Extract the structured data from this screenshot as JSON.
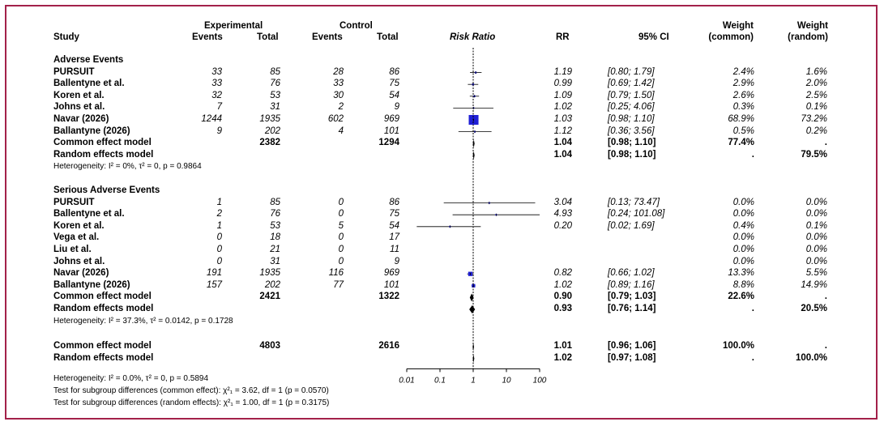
{
  "headers": {
    "experimental": "Experimental",
    "control": "Control",
    "study": "Study",
    "events": "Events",
    "total": "Total",
    "events2": "Events",
    "total2": "Total",
    "risk_ratio": "Risk Ratio",
    "rr": "RR",
    "ci": "95% CI",
    "weight1_top": "Weight",
    "weight1_bottom": "(common)",
    "weight2_top": "Weight",
    "weight2_bottom": "(random)"
  },
  "groups": [
    {
      "title": "Adverse Events",
      "rows": [
        {
          "study": "PURSUIT",
          "e_ev": "33",
          "e_tot": "85",
          "c_ev": "28",
          "c_tot": "86",
          "rr": "1.19",
          "ci": "[0.80;  1.79]",
          "wc": "2.4%",
          "wr": "1.6%"
        },
        {
          "study": "Ballentyne et al.",
          "e_ev": "33",
          "e_tot": "76",
          "c_ev": "33",
          "c_tot": "75",
          "rr": "0.99",
          "ci": "[0.69;  1.42]",
          "wc": "2.9%",
          "wr": "2.0%"
        },
        {
          "study": "Koren et al.",
          "e_ev": "32",
          "e_tot": "53",
          "c_ev": "30",
          "c_tot": "54",
          "rr": "1.09",
          "ci": "[0.79;  1.50]",
          "wc": "2.6%",
          "wr": "2.5%"
        },
        {
          "study": "Johns et al.",
          "e_ev": "7",
          "e_tot": "31",
          "c_ev": "2",
          "c_tot": "9",
          "rr": "1.02",
          "ci": "[0.25;  4.06]",
          "wc": "0.3%",
          "wr": "0.1%"
        },
        {
          "study": "Navar (2026)",
          "e_ev": "1244",
          "e_tot": "1935",
          "c_ev": "602",
          "c_tot": "969",
          "rr": "1.03",
          "ci": "[0.98;  1.10]",
          "wc": "68.9%",
          "wr": "73.2%"
        },
        {
          "study": "Ballantyne (2026)",
          "e_ev": "9",
          "e_tot": "202",
          "c_ev": "4",
          "c_tot": "101",
          "rr": "1.12",
          "ci": "[0.36;  3.56]",
          "wc": "0.5%",
          "wr": "0.2%"
        }
      ],
      "common": {
        "label": "Common effect model",
        "e_tot": "2382",
        "c_tot": "1294",
        "rr": "1.04",
        "ci": "[0.98;  1.10]",
        "wc": "77.4%",
        "wr": "."
      },
      "random": {
        "label": "Random effects model",
        "rr": "1.04",
        "ci": "[0.98;  1.10]",
        "wc": ".",
        "wr": "79.5%"
      },
      "heterogeneity": "Heterogeneity: I² = 0%, τ² = 0, p = 0.9864"
    },
    {
      "title": "Serious Adverse Events",
      "rows": [
        {
          "study": "PURSUIT",
          "e_ev": "1",
          "e_tot": "85",
          "c_ev": "0",
          "c_tot": "86",
          "rr": "3.04",
          "ci": "[0.13; 73.47]",
          "wc": "0.0%",
          "wr": "0.0%"
        },
        {
          "study": "Ballentyne et al.",
          "e_ev": "2",
          "e_tot": "76",
          "c_ev": "0",
          "c_tot": "75",
          "rr": "4.93",
          "ci": "[0.24; 101.08]",
          "wc": "0.0%",
          "wr": "0.0%"
        },
        {
          "study": "Koren et al.",
          "e_ev": "1",
          "e_tot": "53",
          "c_ev": "5",
          "c_tot": "54",
          "rr": "0.20",
          "ci": "[0.02;  1.69]",
          "wc": "0.4%",
          "wr": "0.1%"
        },
        {
          "study": "Vega et al.",
          "e_ev": "0",
          "e_tot": "18",
          "c_ev": "0",
          "c_tot": "17",
          "rr": "",
          "ci": "",
          "wc": "0.0%",
          "wr": "0.0%"
        },
        {
          "study": "Liu et al.",
          "e_ev": "0",
          "e_tot": "21",
          "c_ev": "0",
          "c_tot": "11",
          "rr": "",
          "ci": "",
          "wc": "0.0%",
          "wr": "0.0%"
        },
        {
          "study": "Johns et al.",
          "e_ev": "0",
          "e_tot": "31",
          "c_ev": "0",
          "c_tot": "9",
          "rr": "",
          "ci": "",
          "wc": "0.0%",
          "wr": "0.0%"
        },
        {
          "study": "Navar (2026)",
          "e_ev": "191",
          "e_tot": "1935",
          "c_ev": "116",
          "c_tot": "969",
          "rr": "0.82",
          "ci": "[0.66;  1.02]",
          "wc": "13.3%",
          "wr": "5.5%"
        },
        {
          "study": "Ballantyne (2026)",
          "e_ev": "157",
          "e_tot": "202",
          "c_ev": "77",
          "c_tot": "101",
          "rr": "1.02",
          "ci": "[0.89;  1.16]",
          "wc": "8.8%",
          "wr": "14.9%"
        }
      ],
      "common": {
        "label": "Common effect model",
        "e_tot": "2421",
        "c_tot": "1322",
        "rr": "0.90",
        "ci": "[0.79;  1.03]",
        "wc": "22.6%",
        "wr": "."
      },
      "random": {
        "label": "Random effects model",
        "rr": "0.93",
        "ci": "[0.76;  1.14]",
        "wc": ".",
        "wr": "20.5%"
      },
      "heterogeneity": "Heterogeneity: I² = 37.3%, τ² = 0.0142, p = 0.1728"
    }
  ],
  "overall": {
    "common": {
      "label": "Common effect model",
      "e_tot": "4803",
      "c_tot": "2616",
      "rr": "1.01",
      "ci": "[0.96;  1.06]",
      "wc": "100.0%",
      "wr": "."
    },
    "random": {
      "label": "Random effects model",
      "rr": "1.02",
      "ci": "[0.97;  1.08]",
      "wc": ".",
      "wr": "100.0%"
    }
  },
  "footer": [
    "Heterogeneity: I² = 0.0%, τ² = 0, p = 0.5894",
    "Test for subgroup differences (common effect): χ²₁ = 3.62, df = 1 (p = 0.0570)",
    "Test for subgroup differences (random effects): χ²₁ = 1.00, df = 1 (p = 0.3175)"
  ],
  "colors": {
    "frame": "#a3214a",
    "square": "#1f1fd6",
    "diamond": "#000000"
  },
  "chart_data": {
    "type": "forest",
    "x_scale": "log",
    "xlim": [
      0.01,
      100
    ],
    "x_ticks": [
      0.01,
      0.1,
      1,
      10,
      100
    ],
    "x_tick_labels": [
      "0.01",
      "0.1",
      "1",
      "10",
      "100"
    ],
    "reference_line": 1,
    "studies": [
      {
        "group": "Adverse Events",
        "study": "PURSUIT",
        "rr": 1.19,
        "lo": 0.8,
        "hi": 1.79,
        "weight": 2.4
      },
      {
        "group": "Adverse Events",
        "study": "Ballentyne et al.",
        "rr": 0.99,
        "lo": 0.69,
        "hi": 1.42,
        "weight": 2.9
      },
      {
        "group": "Adverse Events",
        "study": "Koren et al.",
        "rr": 1.09,
        "lo": 0.79,
        "hi": 1.5,
        "weight": 2.6
      },
      {
        "group": "Adverse Events",
        "study": "Johns et al.",
        "rr": 1.02,
        "lo": 0.25,
        "hi": 4.06,
        "weight": 0.3
      },
      {
        "group": "Adverse Events",
        "study": "Navar (2026)",
        "rr": 1.03,
        "lo": 0.98,
        "hi": 1.1,
        "weight": 68.9
      },
      {
        "group": "Adverse Events",
        "study": "Ballantyne (2026)",
        "rr": 1.12,
        "lo": 0.36,
        "hi": 3.56,
        "weight": 0.5
      },
      {
        "group": "Adverse Events",
        "study": "Common effect model",
        "rr": 1.04,
        "lo": 0.98,
        "hi": 1.1,
        "summary": true
      },
      {
        "group": "Adverse Events",
        "study": "Random effects model",
        "rr": 1.04,
        "lo": 0.98,
        "hi": 1.1,
        "summary": true
      },
      {
        "group": "Serious Adverse Events",
        "study": "PURSUIT",
        "rr": 3.04,
        "lo": 0.13,
        "hi": 73.47,
        "weight": 0.0
      },
      {
        "group": "Serious Adverse Events",
        "study": "Ballentyne et al.",
        "rr": 4.93,
        "lo": 0.24,
        "hi": 101.08,
        "weight": 0.0
      },
      {
        "group": "Serious Adverse Events",
        "study": "Koren et al.",
        "rr": 0.2,
        "lo": 0.02,
        "hi": 1.69,
        "weight": 0.4
      },
      {
        "group": "Serious Adverse Events",
        "study": "Navar (2026)",
        "rr": 0.82,
        "lo": 0.66,
        "hi": 1.02,
        "weight": 13.3
      },
      {
        "group": "Serious Adverse Events",
        "study": "Ballantyne (2026)",
        "rr": 1.02,
        "lo": 0.89,
        "hi": 1.16,
        "weight": 8.8
      },
      {
        "group": "Serious Adverse Events",
        "study": "Common effect model",
        "rr": 0.9,
        "lo": 0.79,
        "hi": 1.03,
        "summary": true
      },
      {
        "group": "Serious Adverse Events",
        "study": "Random effects model",
        "rr": 0.93,
        "lo": 0.76,
        "hi": 1.14,
        "summary": true
      },
      {
        "group": "Overall",
        "study": "Common effect model",
        "rr": 1.01,
        "lo": 0.96,
        "hi": 1.06,
        "summary": true
      },
      {
        "group": "Overall",
        "study": "Random effects model",
        "rr": 1.02,
        "lo": 0.97,
        "hi": 1.08,
        "summary": true
      }
    ]
  }
}
